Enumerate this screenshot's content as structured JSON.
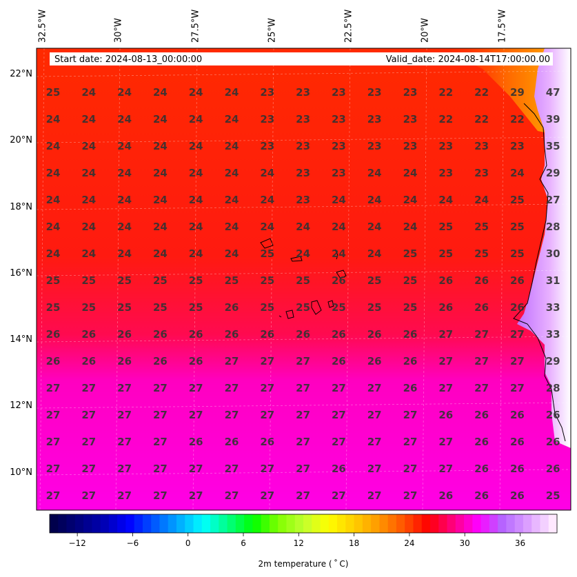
{
  "header": {
    "start_date": "Start date: 2024-08-13_00:00:00",
    "valid_date": "Valid_date: 2024-08-14T17:00:00.00"
  },
  "map": {
    "lon_labels": [
      "32.5°W",
      "30°W",
      "27.5°W",
      "25°W",
      "22.5°W",
      "20°W",
      "17.5°W"
    ],
    "lat_labels": [
      "22°N",
      "20°N",
      "18°N",
      "16°N",
      "14°N",
      "12°N",
      "10°N"
    ],
    "extent": {
      "lon_min": -33.5,
      "lon_max": -15.7,
      "lat_min": 8.9,
      "lat_max": 22.8
    },
    "grid_lines": true,
    "values": [
      [
        "25",
        "24",
        "24",
        "24",
        "24",
        "24",
        "23",
        "23",
        "23",
        "23",
        "23",
        "22",
        "22",
        "29",
        "47"
      ],
      [
        "24",
        "24",
        "24",
        "24",
        "24",
        "24",
        "23",
        "23",
        "23",
        "23",
        "23",
        "22",
        "22",
        "22",
        "39"
      ],
      [
        "24",
        "24",
        "24",
        "24",
        "24",
        "24",
        "23",
        "23",
        "23",
        "23",
        "23",
        "23",
        "23",
        "23",
        "35"
      ],
      [
        "24",
        "24",
        "24",
        "24",
        "24",
        "24",
        "24",
        "23",
        "23",
        "24",
        "24",
        "23",
        "23",
        "24",
        "29"
      ],
      [
        "24",
        "24",
        "24",
        "24",
        "24",
        "24",
        "24",
        "23",
        "24",
        "24",
        "24",
        "24",
        "24",
        "25",
        "27"
      ],
      [
        "24",
        "24",
        "24",
        "24",
        "24",
        "24",
        "24",
        "24",
        "24",
        "24",
        "24",
        "25",
        "25",
        "25",
        "28"
      ],
      [
        "24",
        "24",
        "24",
        "24",
        "24",
        "24",
        "25",
        "24",
        "24",
        "24",
        "25",
        "25",
        "25",
        "25",
        "30"
      ],
      [
        "25",
        "25",
        "25",
        "25",
        "25",
        "25",
        "25",
        "25",
        "26",
        "25",
        "25",
        "26",
        "26",
        "26",
        "31"
      ],
      [
        "25",
        "25",
        "25",
        "25",
        "25",
        "26",
        "25",
        "25",
        "25",
        "25",
        "25",
        "26",
        "26",
        "26",
        "33"
      ],
      [
        "26",
        "26",
        "26",
        "26",
        "26",
        "26",
        "26",
        "26",
        "26",
        "26",
        "26",
        "27",
        "27",
        "27",
        "33"
      ],
      [
        "26",
        "26",
        "26",
        "26",
        "26",
        "27",
        "27",
        "27",
        "26",
        "26",
        "26",
        "27",
        "27",
        "27",
        "29"
      ],
      [
        "27",
        "27",
        "27",
        "27",
        "27",
        "27",
        "27",
        "27",
        "27",
        "27",
        "26",
        "27",
        "27",
        "27",
        "28"
      ],
      [
        "27",
        "27",
        "27",
        "27",
        "27",
        "27",
        "27",
        "27",
        "27",
        "27",
        "27",
        "26",
        "26",
        "26",
        "26"
      ],
      [
        "27",
        "27",
        "27",
        "27",
        "26",
        "26",
        "26",
        "27",
        "27",
        "27",
        "27",
        "27",
        "26",
        "26",
        "26"
      ],
      [
        "27",
        "27",
        "27",
        "27",
        "27",
        "27",
        "27",
        "27",
        "26",
        "27",
        "27",
        "27",
        "26",
        "26",
        "26"
      ],
      [
        "27",
        "27",
        "27",
        "27",
        "27",
        "27",
        "27",
        "27",
        "27",
        "27",
        "27",
        "26",
        "26",
        "26",
        "25"
      ]
    ]
  },
  "colorbar": {
    "label": "2m temperature ($^\\circ$C)",
    "label_display": "2m temperature ( ˚ C)",
    "ticks": [
      "−12",
      "−6",
      "0",
      "6",
      "12",
      "18",
      "24",
      "30",
      "36"
    ],
    "tick_values": [
      -12,
      -6,
      0,
      6,
      12,
      18,
      24,
      30,
      36
    ],
    "range": [
      -15,
      40
    ],
    "colors": [
      "#00004c",
      "#00007f",
      "#0000b3",
      "#0000ff",
      "#0055ff",
      "#00aaff",
      "#00ffff",
      "#00ff80",
      "#00ff00",
      "#80ff00",
      "#c0ff30",
      "#ffff00",
      "#ffd000",
      "#ff9900",
      "#ff5500",
      "#ff0000",
      "#ff0080",
      "#ff00ff",
      "#b366ff",
      "#dda0ff",
      "#ffe8ff"
    ]
  }
}
